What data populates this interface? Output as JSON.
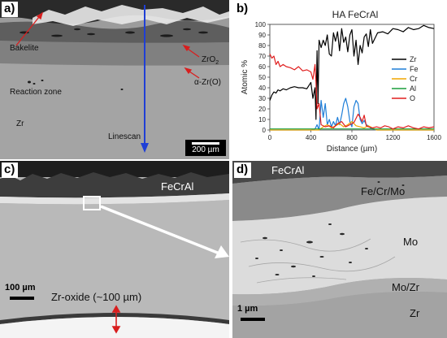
{
  "figure": {
    "panel_a": {
      "label": "a)",
      "annotations": {
        "bakelite": "Bakelite",
        "zro2_base": "ZrO",
        "zro2_sub": "2",
        "alpha_zr": "α-Zr(O)",
        "reaction_zone": "Reaction zone",
        "zr": "Zr",
        "linescan": "Linescan"
      },
      "scale_bar": "200 µm",
      "colors": {
        "linescan_arrow": "#1f3fd6",
        "pointer_arrows": "#d81e1e"
      }
    },
    "panel_b": {
      "label": "b)"
    },
    "panel_c": {
      "label": "c)",
      "annotations": {
        "fecral": "FeCrAl",
        "zr_oxide": "Zr-oxide (~100 µm)"
      },
      "scale_bar": "100 µm"
    },
    "panel_d": {
      "label": "d)",
      "annotations": {
        "fecral": "FeCrAl",
        "fe_cr_mo": "Fe/Cr/Mo",
        "mo": "Mo",
        "mo_zr": "Mo/Zr",
        "zr": "Zr"
      },
      "scale_bar": "1 µm"
    }
  },
  "chart_data": {
    "type": "line",
    "title": "HA FeCrAl",
    "xlabel": "Distance (µm)",
    "ylabel": "Atomic %",
    "xlim": [
      0,
      1600
    ],
    "ylim": [
      0,
      100
    ],
    "xticks": [
      0,
      400,
      800,
      1200,
      1600
    ],
    "yticks": [
      0,
      10,
      20,
      30,
      40,
      50,
      60,
      70,
      80,
      90,
      100
    ],
    "grid": false,
    "legend_position": "right",
    "series": [
      {
        "name": "Zr",
        "color": "#000000",
        "x": [
          0,
          20,
          40,
          60,
          80,
          100,
          130,
          160,
          200,
          240,
          280,
          320,
          360,
          400,
          420,
          440,
          450,
          460,
          470,
          480,
          500,
          520,
          540,
          560,
          580,
          600,
          620,
          640,
          660,
          680,
          700,
          720,
          740,
          760,
          780,
          800,
          820,
          840,
          860,
          880,
          900,
          920,
          940,
          960,
          980,
          1000,
          1050,
          1100,
          1150,
          1200,
          1250,
          1300,
          1350,
          1400,
          1450,
          1500,
          1550,
          1600
        ],
        "y": [
          28,
          33,
          36,
          35,
          38,
          37,
          39,
          38,
          40,
          41,
          40,
          40,
          39,
          45,
          30,
          40,
          10,
          75,
          25,
          85,
          78,
          85,
          80,
          90,
          72,
          70,
          92,
          84,
          93,
          75,
          96,
          83,
          88,
          74,
          90,
          95,
          70,
          85,
          62,
          80,
          73,
          88,
          91,
          79,
          95,
          82,
          92,
          93,
          91,
          96,
          95,
          93,
          97,
          95,
          96,
          99,
          97,
          96
        ]
      },
      {
        "name": "Fe",
        "color": "#1f7fd8",
        "x": [
          0,
          400,
          440,
          460,
          480,
          500,
          520,
          540,
          560,
          580,
          600,
          620,
          640,
          660,
          680,
          700,
          720,
          740,
          760,
          780,
          800,
          820,
          840,
          860,
          880,
          900,
          920,
          940,
          960,
          980,
          1000,
          1050,
          1600
        ],
        "y": [
          0,
          0,
          1,
          5,
          0,
          28,
          12,
          25,
          5,
          10,
          3,
          8,
          4,
          12,
          5,
          14,
          25,
          30,
          22,
          8,
          3,
          22,
          28,
          25,
          10,
          6,
          9,
          5,
          4,
          2,
          1,
          0,
          0
        ]
      },
      {
        "name": "Cr",
        "color": "#f0a500",
        "x": [
          0,
          480,
          520,
          560,
          600,
          640,
          680,
          720,
          760,
          800,
          840,
          880,
          920,
          960,
          1000,
          1040,
          1600
        ],
        "y": [
          0,
          0,
          3,
          5,
          2,
          4,
          6,
          3,
          5,
          8,
          4,
          3,
          2,
          4,
          2,
          0,
          0
        ]
      },
      {
        "name": "Al",
        "color": "#1a9e3c",
        "x": [
          0,
          400,
          1600
        ],
        "y": [
          1,
          1,
          1
        ]
      },
      {
        "name": "O",
        "color": "#e01e1e",
        "x": [
          0,
          20,
          40,
          60,
          80,
          100,
          130,
          160,
          200,
          240,
          280,
          320,
          360,
          400,
          420,
          440,
          450,
          460,
          480,
          500,
          540,
          580,
          620,
          660,
          700,
          740,
          780,
          820,
          860,
          880,
          900,
          920,
          940,
          960,
          1000,
          1040,
          1080,
          1120,
          1160,
          1200,
          1250,
          1300,
          1350,
          1400,
          1450,
          1500,
          1550,
          1600
        ],
        "y": [
          72,
          68,
          70,
          62,
          65,
          60,
          62,
          60,
          59,
          57,
          60,
          56,
          57,
          55,
          48,
          62,
          45,
          20,
          25,
          5,
          3,
          4,
          2,
          6,
          8,
          3,
          5,
          7,
          15,
          12,
          8,
          14,
          4,
          3,
          2,
          3,
          2,
          4,
          3,
          1,
          3,
          2,
          4,
          2,
          1,
          3,
          2,
          3
        ]
      }
    ]
  }
}
